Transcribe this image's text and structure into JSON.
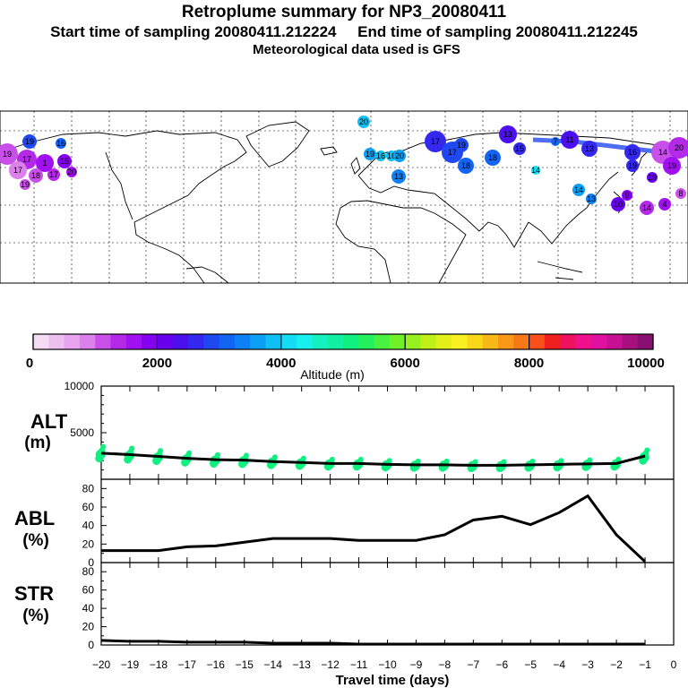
{
  "header": {
    "title": "Retroplume summary for NP3_20080411",
    "subtitle": "Start time of sampling 20080411.212224     End time of sampling 20080411.212245",
    "met_line": "Meteorological data used is GFS"
  },
  "map": {
    "labels": [
      "20",
      "19",
      "16",
      "19",
      "17",
      "1",
      "15",
      "17",
      "18",
      "17",
      "20",
      "19",
      "19",
      "16",
      "16",
      "20",
      "13",
      "17",
      "17",
      "19",
      "18",
      "18",
      "13",
      "15",
      "14",
      "11",
      "13",
      "16",
      "19",
      "14",
      "20",
      "19",
      "19",
      "14",
      "13",
      "10",
      "14",
      "4",
      "8",
      "9",
      "7"
    ]
  },
  "colorbar": {
    "colors": [
      "#f4dcf4",
      "#eec0f0",
      "#e8a4ee",
      "#dc80ec",
      "#c850e8",
      "#b428e8",
      "#a010f0",
      "#8400ee",
      "#6800ee",
      "#4c10ee",
      "#3428f0",
      "#2048f0",
      "#1464f4",
      "#0c80f4",
      "#0ca0f4",
      "#10c0f4",
      "#14dcf4",
      "#18f0f0",
      "#14f0c0",
      "#10f0a0",
      "#10f080",
      "#24f060",
      "#48f040",
      "#70f028",
      "#98f020",
      "#c0f018",
      "#e0f018",
      "#f8f020",
      "#f8d818",
      "#f8b818",
      "#f89818",
      "#f87818",
      "#f85018",
      "#f02020",
      "#f01060",
      "#f0108c",
      "#e010a0",
      "#c81094",
      "#a81080",
      "#881070"
    ],
    "ticks": [
      "0",
      "2000",
      "4000",
      "6000",
      "8000",
      "10000"
    ],
    "label": "Altitude (m)"
  },
  "panels": {
    "alt_label": "ALT",
    "alt_unit": "(m)",
    "abl_label": "ABL",
    "abl_unit": "(%)",
    "str_label": "STR",
    "str_unit": "(%)",
    "xlabel": "Travel time (days)"
  },
  "chart_data": {
    "type": "line",
    "x_ticks": [
      "−20",
      "−19",
      "−18",
      "−17",
      "−16",
      "−15",
      "−14",
      "−13",
      "−12",
      "−11",
      "−10",
      "−9",
      "−8",
      "−7",
      "−6",
      "−5",
      "−4",
      "−3",
      "−2",
      "−1",
      "0"
    ],
    "xlim": [
      -20,
      0
    ],
    "x": [
      -20,
      -19,
      -18,
      -17,
      -16,
      -15,
      -14,
      -13,
      -12,
      -11,
      -10,
      -9,
      -8,
      -7,
      -6,
      -5,
      -4,
      -3,
      -2,
      -1
    ],
    "alt": {
      "ylim": [
        0,
        10000
      ],
      "y_ticks": [
        "10000",
        "5000"
      ],
      "mean": [
        2800,
        2650,
        2450,
        2250,
        2100,
        2050,
        1900,
        1800,
        1700,
        1700,
        1600,
        1550,
        1550,
        1500,
        1500,
        1550,
        1600,
        1650,
        1700,
        2500
      ],
      "scatter_color": "#10f080"
    },
    "abl": {
      "ylim": [
        0,
        90
      ],
      "y_ticks": [
        "80",
        "60",
        "40",
        "20",
        "0"
      ],
      "values": [
        13,
        13,
        13,
        17,
        18,
        22,
        26,
        26,
        26,
        24,
        24,
        24,
        30,
        46,
        50,
        41,
        54,
        72,
        30,
        1
      ]
    },
    "str": {
      "ylim": [
        0,
        90
      ],
      "y_ticks": [
        "80",
        "60",
        "40",
        "20",
        "0"
      ],
      "values": [
        5,
        4,
        4,
        3,
        3,
        3,
        2,
        2,
        2,
        1,
        1,
        1,
        1,
        1,
        1,
        1,
        1,
        1,
        1,
        1
      ]
    }
  }
}
